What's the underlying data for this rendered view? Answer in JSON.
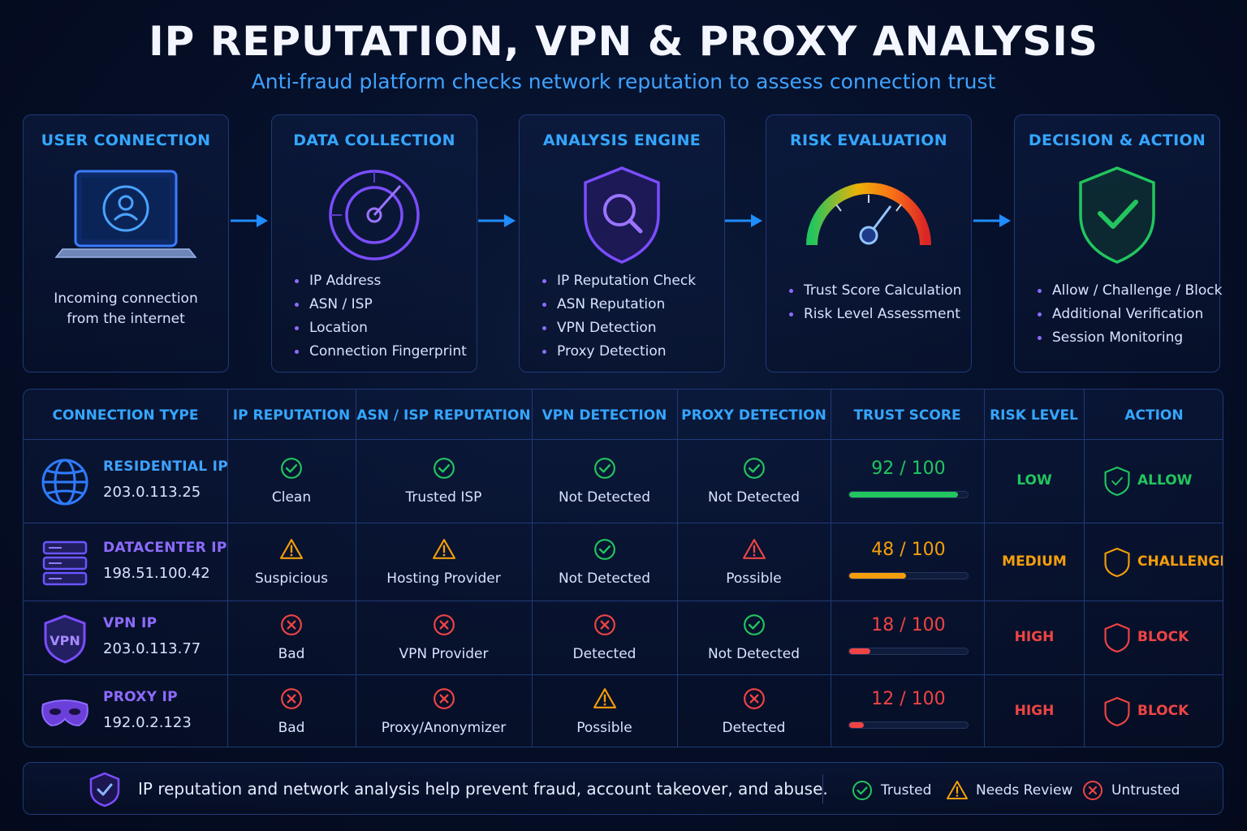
{
  "title": "IP REPUTATION, VPN & PROXY ANALYSIS",
  "subtitle": "Anti-fraud platform checks network reputation to assess connection trust",
  "stages": [
    {
      "title": "USER CONNECTION",
      "icon": "laptop-user-icon",
      "description_line1": "Incoming connection",
      "description_line2": "from the internet"
    },
    {
      "title": "DATA COLLECTION",
      "icon": "radar-icon",
      "items": [
        "IP Address",
        "ASN / ISP",
        "Location",
        "Connection Fingerprint"
      ]
    },
    {
      "title": "ANALYSIS ENGINE",
      "icon": "shield-search-icon",
      "items": [
        "IP Reputation Check",
        "ASN Reputation",
        "VPN Detection",
        "Proxy Detection"
      ]
    },
    {
      "title": "RISK EVALUATION",
      "icon": "gauge-icon",
      "items": [
        "Trust Score Calculation",
        "Risk Level Assessment"
      ]
    },
    {
      "title": "DECISION & ACTION",
      "icon": "shield-check-icon",
      "items": [
        "Allow / Challenge / Block",
        "Additional Verification",
        "Session Monitoring"
      ]
    }
  ],
  "table": {
    "headers": [
      "CONNECTION TYPE",
      "IP REPUTATION",
      "ASN / ISP REPUTATION",
      "VPN DETECTION",
      "PROXY DETECTION",
      "TRUST SCORE",
      "RISK LEVEL",
      "ACTION"
    ],
    "rows": [
      {
        "type": "RESIDENTIAL IP",
        "ip": "203.0.113.25",
        "icon": "globe-icon",
        "type_color": "#3fa2ff",
        "ip_rep": {
          "status": "trusted",
          "label": "Clean"
        },
        "asn_rep": {
          "status": "trusted",
          "label": "Trusted ISP"
        },
        "vpn": {
          "status": "trusted",
          "label": "Not Detected"
        },
        "proxy": {
          "status": "trusted",
          "label": "Not Detected"
        },
        "score": 92,
        "score_text": "92 / 100",
        "score_color": "#22c55e",
        "risk": "LOW",
        "risk_color": "#22c55e",
        "action": "ALLOW",
        "action_color": "#22c55e"
      },
      {
        "type": "DATACENTER IP",
        "ip": "198.51.100.42",
        "icon": "server-icon",
        "type_color": "#8e6bff",
        "ip_rep": {
          "status": "review",
          "label": "Suspicious"
        },
        "asn_rep": {
          "status": "review",
          "label": "Hosting Provider"
        },
        "vpn": {
          "status": "trusted",
          "label": "Not Detected"
        },
        "proxy": {
          "status": "alert",
          "label": "Possible"
        },
        "score": 48,
        "score_text": "48 / 100",
        "score_color": "#f59e0b",
        "risk": "MEDIUM",
        "risk_color": "#f59e0b",
        "action": "CHALLENGE",
        "action_color": "#f59e0b"
      },
      {
        "type": "VPN IP",
        "ip": "203.0.113.77",
        "icon": "vpn-shield-icon",
        "type_color": "#8e6bff",
        "ip_rep": {
          "status": "untrusted",
          "label": "Bad"
        },
        "asn_rep": {
          "status": "untrusted",
          "label": "VPN Provider"
        },
        "vpn": {
          "status": "untrusted",
          "label": "Detected"
        },
        "proxy": {
          "status": "trusted",
          "label": "Not Detected"
        },
        "score": 18,
        "score_text": "18 / 100",
        "score_color": "#ef4444",
        "risk": "HIGH",
        "risk_color": "#ef4444",
        "action": "BLOCK",
        "action_color": "#ef4444"
      },
      {
        "type": "PROXY IP",
        "ip": "192.0.2.123",
        "icon": "mask-icon",
        "type_color": "#8e6bff",
        "ip_rep": {
          "status": "untrusted",
          "label": "Bad"
        },
        "asn_rep": {
          "status": "untrusted",
          "label": "Proxy/Anonymizer"
        },
        "vpn": {
          "status": "review",
          "label": "Possible"
        },
        "proxy": {
          "status": "untrusted",
          "label": "Detected"
        },
        "score": 12,
        "score_text": "12 / 100",
        "score_color": "#ef4444",
        "risk": "HIGH",
        "risk_color": "#ef4444",
        "action": "BLOCK",
        "action_color": "#ef4444"
      }
    ]
  },
  "footer": {
    "text": "IP reputation and network analysis help prevent fraud, account takeover, and abuse.",
    "legend": [
      "Trusted",
      "Needs Review",
      "Untrusted"
    ]
  },
  "colors": {
    "accent": "#35a6ff",
    "purple": "#8e6bff",
    "trusted": "#22c55e",
    "review": "#f59e0b",
    "untrusted": "#ef4444"
  }
}
